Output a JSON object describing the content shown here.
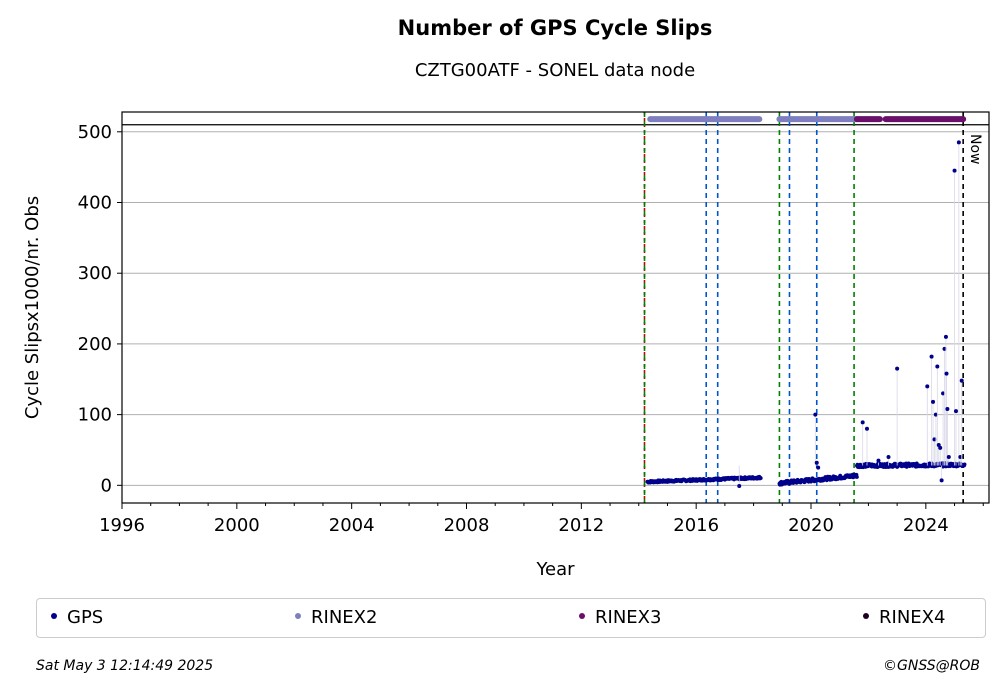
{
  "title": "Number of GPS Cycle Slips",
  "subtitle": "CZTG00ATF - SONEL data node",
  "now_label": "Now",
  "footer": {
    "timestamp": "Sat May  3 12:14:49 2025",
    "credit": "©GNSS@ROB"
  },
  "legend": [
    {
      "label": "GPS",
      "color": "#00008b"
    },
    {
      "label": "RINEX2",
      "color": "#7f7fbf"
    },
    {
      "label": "RINEX3",
      "color": "#6a0f6a"
    },
    {
      "label": "RINEX4",
      "color": "#200020"
    }
  ],
  "chart_data": {
    "type": "scatter",
    "xlabel": "Year",
    "ylabel": "Cycle Slipsx1000/nr. Obs",
    "xlim": [
      1996,
      2026.2
    ],
    "ylim": [
      -25,
      528
    ],
    "xticks": [
      1996,
      2000,
      2004,
      2008,
      2012,
      2016,
      2020,
      2024
    ],
    "yticks": [
      0,
      100,
      200,
      300,
      400,
      500
    ],
    "grid": "horizontal",
    "threshold_line": 510,
    "vertical_lines": [
      {
        "x": 2014.2,
        "color": "#cc0000",
        "style": "dashed"
      },
      {
        "x": 2014.2,
        "color": "#008000",
        "style": "dashed"
      },
      {
        "x": 2016.35,
        "color": "#0055cc",
        "style": "dashed"
      },
      {
        "x": 2016.75,
        "color": "#0055cc",
        "style": "dashed"
      },
      {
        "x": 2018.9,
        "color": "#008000",
        "style": "dashed"
      },
      {
        "x": 2019.25,
        "color": "#0055cc",
        "style": "dashed"
      },
      {
        "x": 2020.2,
        "color": "#0055cc",
        "style": "dashed"
      },
      {
        "x": 2021.5,
        "color": "#008000",
        "style": "dashed"
      },
      {
        "x": 2025.3,
        "color": "#000000",
        "style": "dashed"
      }
    ],
    "format_bars": [
      {
        "name": "RINEX2",
        "color": "#7f7fbf",
        "y": 518,
        "ranges": [
          [
            2014.4,
            2018.2
          ],
          [
            2018.9,
            2021.6
          ]
        ]
      },
      {
        "name": "RINEX3",
        "color": "#6a0f6a",
        "y": 518,
        "ranges": [
          [
            2021.6,
            2022.4
          ],
          [
            2022.6,
            2025.3
          ]
        ]
      }
    ],
    "series": [
      {
        "name": "GPS",
        "color": "#00008b",
        "segments": [
          {
            "start": 2014.3,
            "end": 2018.25,
            "base": 5,
            "slope": 1.5,
            "noise": 1.5
          },
          {
            "start": 2018.9,
            "end": 2021.6,
            "base": 3,
            "slope": 4,
            "noise": 2.5
          },
          {
            "start": 2021.6,
            "end": 2025.35,
            "base": 28,
            "slope": 0.3,
            "noise": 2.5
          }
        ],
        "outliers": [
          [
            2017.5,
            -1
          ],
          [
            2020.15,
            100
          ],
          [
            2020.2,
            32
          ],
          [
            2020.25,
            25
          ],
          [
            2021.8,
            89
          ],
          [
            2021.95,
            80
          ],
          [
            2022.35,
            35
          ],
          [
            2022.7,
            40
          ],
          [
            2023.0,
            165
          ],
          [
            2024.05,
            140
          ],
          [
            2024.2,
            182
          ],
          [
            2024.25,
            118
          ],
          [
            2024.3,
            65
          ],
          [
            2024.35,
            100
          ],
          [
            2024.4,
            168
          ],
          [
            2024.45,
            57
          ],
          [
            2024.5,
            53
          ],
          [
            2024.55,
            7
          ],
          [
            2024.6,
            130
          ],
          [
            2024.65,
            193
          ],
          [
            2024.7,
            210
          ],
          [
            2024.72,
            158
          ],
          [
            2024.75,
            108
          ],
          [
            2024.8,
            40
          ],
          [
            2024.85,
            30
          ],
          [
            2025.0,
            445
          ],
          [
            2025.05,
            105
          ],
          [
            2025.15,
            485
          ],
          [
            2025.2,
            40
          ],
          [
            2025.25,
            148
          ]
        ]
      }
    ]
  }
}
